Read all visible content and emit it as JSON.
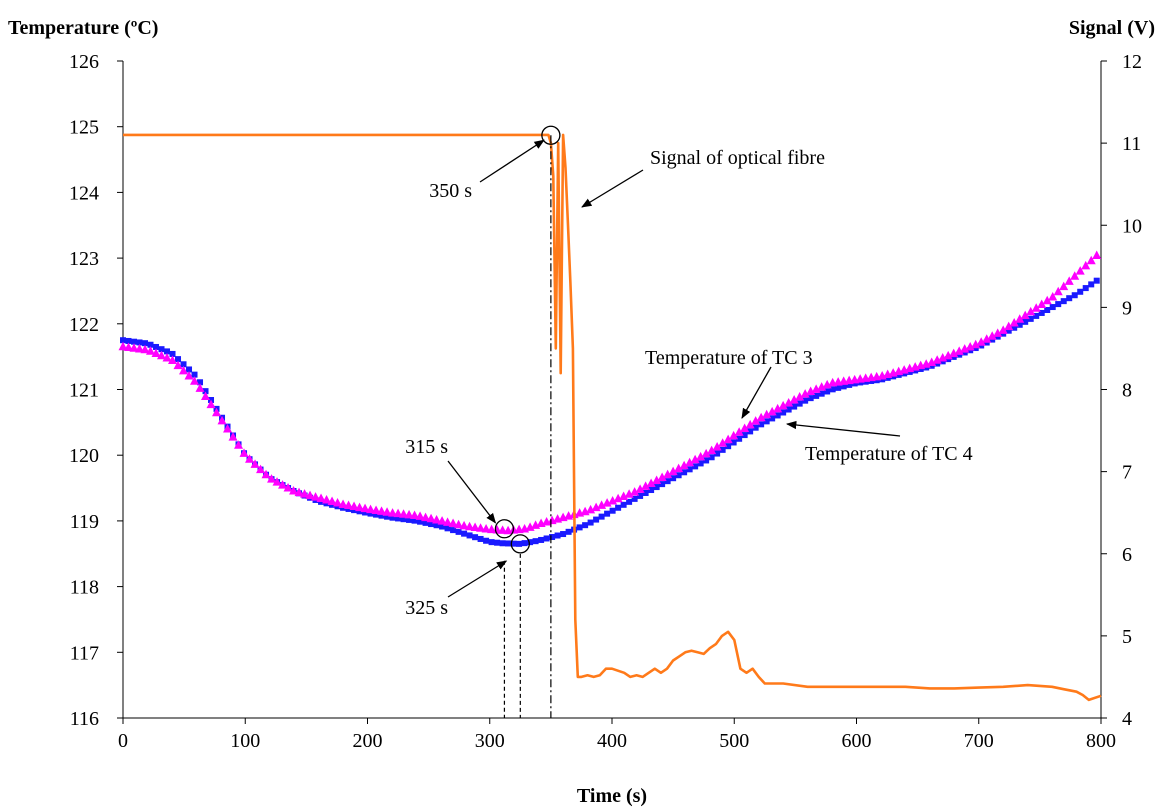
{
  "chart_data": {
    "type": "line",
    "title": "",
    "xlabel": "Time (s)",
    "ylabel_left": "Temperature (ºC)",
    "ylabel_right": "Signal (V)",
    "xlim": [
      0,
      800
    ],
    "ylim_left": [
      116,
      126
    ],
    "ylim_right": [
      4,
      12
    ],
    "x_ticks": [
      "0",
      "100",
      "200",
      "300",
      "400",
      "500",
      "600",
      "700",
      "800"
    ],
    "y_ticks_left": [
      "116",
      "117",
      "118",
      "119",
      "120",
      "121",
      "122",
      "123",
      "124",
      "125",
      "126"
    ],
    "y_ticks_right": [
      "4",
      "5",
      "6",
      "7",
      "8",
      "9",
      "10",
      "11",
      "12"
    ],
    "grid": false,
    "legend": "none",
    "series": [
      {
        "axis": "left",
        "marker": "square",
        "color": "#1a1aff",
        "x": [
          0,
          20,
          40,
          60,
          80,
          100,
          120,
          140,
          160,
          180,
          200,
          220,
          240,
          260,
          280,
          300,
          310,
          325,
          340,
          360,
          380,
          400,
          420,
          440,
          460,
          480,
          500,
          520,
          540,
          560,
          580,
          600,
          620,
          640,
          660,
          680,
          700,
          720,
          740,
          760,
          780,
          800
        ],
        "values": [
          121.75,
          121.7,
          121.55,
          121.2,
          120.6,
          120.0,
          119.65,
          119.45,
          119.3,
          119.2,
          119.12,
          119.05,
          119.0,
          118.92,
          118.8,
          118.68,
          118.66,
          118.65,
          118.7,
          118.8,
          118.95,
          119.15,
          119.35,
          119.55,
          119.75,
          119.95,
          120.2,
          120.45,
          120.65,
          120.85,
          121.0,
          121.1,
          121.15,
          121.25,
          121.35,
          121.5,
          121.65,
          121.85,
          122.05,
          122.25,
          122.45,
          122.7
        ]
      },
      {
        "axis": "left",
        "marker": "triangle",
        "color": "#ff00ff",
        "x": [
          0,
          20,
          40,
          60,
          80,
          100,
          120,
          140,
          160,
          180,
          200,
          220,
          240,
          260,
          280,
          300,
          315,
          330,
          340,
          360,
          380,
          400,
          420,
          440,
          460,
          480,
          500,
          520,
          540,
          560,
          580,
          600,
          620,
          640,
          660,
          680,
          700,
          720,
          740,
          760,
          780,
          800
        ],
        "values": [
          121.65,
          121.6,
          121.45,
          121.1,
          120.55,
          120.0,
          119.65,
          119.45,
          119.35,
          119.25,
          119.18,
          119.12,
          119.08,
          119.0,
          118.92,
          118.87,
          118.85,
          118.88,
          118.95,
          119.05,
          119.15,
          119.3,
          119.45,
          119.65,
          119.85,
          120.05,
          120.3,
          120.55,
          120.75,
          120.95,
          121.1,
          121.15,
          121.2,
          121.3,
          121.4,
          121.55,
          121.7,
          121.9,
          122.15,
          122.4,
          122.75,
          123.1
        ]
      },
      {
        "axis": "right",
        "marker": "none",
        "color": "#ff7a1a",
        "x": [
          0,
          348,
          350,
          352,
          354,
          356,
          358,
          360,
          362,
          364,
          366,
          368,
          370,
          372,
          375,
          380,
          385,
          390,
          395,
          400,
          410,
          415,
          420,
          425,
          430,
          435,
          440,
          445,
          450,
          455,
          460,
          465,
          470,
          475,
          480,
          485,
          490,
          495,
          500,
          505,
          510,
          515,
          520,
          525,
          530,
          540,
          560,
          600,
          640,
          660,
          680,
          700,
          720,
          740,
          760,
          770,
          780,
          785,
          790,
          800
        ],
        "values": [
          11.1,
          11.1,
          11.0,
          10.6,
          8.5,
          11.0,
          8.2,
          11.1,
          10.7,
          10.0,
          9.3,
          8.5,
          5.2,
          4.5,
          4.5,
          4.52,
          4.5,
          4.52,
          4.6,
          4.6,
          4.55,
          4.5,
          4.52,
          4.5,
          4.55,
          4.6,
          4.55,
          4.6,
          4.7,
          4.75,
          4.8,
          4.82,
          4.8,
          4.78,
          4.85,
          4.9,
          5.0,
          5.05,
          4.95,
          4.6,
          4.55,
          4.6,
          4.5,
          4.42,
          4.42,
          4.42,
          4.38,
          4.38,
          4.38,
          4.36,
          4.36,
          4.37,
          4.38,
          4.4,
          4.38,
          4.35,
          4.32,
          4.28,
          4.22,
          4.27
        ]
      }
    ],
    "annotations": [
      {
        "text": "350 s",
        "x": 350,
        "y": 124.87,
        "axis": "left"
      },
      {
        "text": "Signal of optical fibre",
        "x": 363,
        "y": 10.4,
        "axis": "right"
      },
      {
        "text": "315 s",
        "x": 312,
        "y": 118.88,
        "axis": "left"
      },
      {
        "text": "325 s",
        "x": 325,
        "y": 118.65,
        "axis": "left"
      },
      {
        "text": "Temperature of TC 3",
        "x": 505,
        "y": 120.1,
        "axis": "left"
      },
      {
        "text": "Temperature of TC 4",
        "x": 540,
        "y": 120.6,
        "axis": "left"
      }
    ]
  }
}
